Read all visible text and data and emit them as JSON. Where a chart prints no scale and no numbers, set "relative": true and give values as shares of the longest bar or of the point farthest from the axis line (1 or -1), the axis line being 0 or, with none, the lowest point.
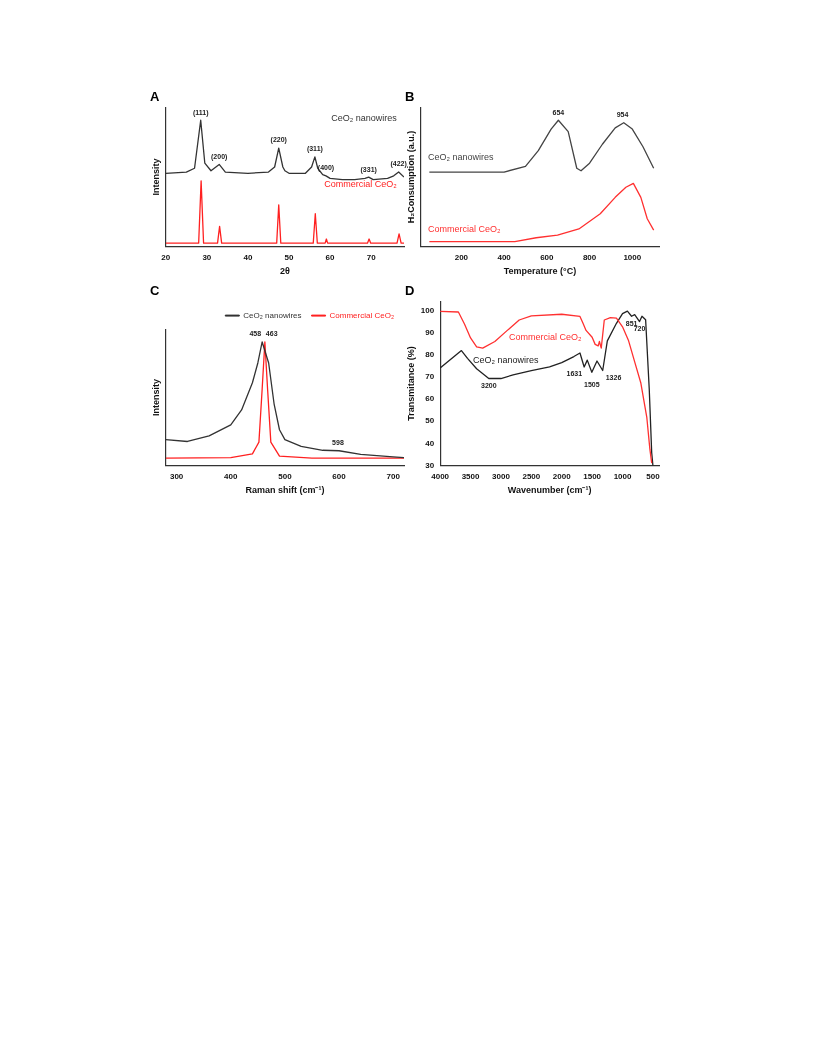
{
  "chart_data": [
    {
      "type": "line",
      "title": "A",
      "xlabel": "2θ",
      "ylabel": "Intensity",
      "relative": true,
      "xlim": [
        20,
        78
      ],
      "xticks": [
        20,
        30,
        40,
        50,
        60,
        70
      ],
      "legend": false,
      "marker": "none",
      "line_style": "solid",
      "series": [
        {
          "name": "CeO₂ nanowires",
          "color": "#333333",
          "x": [
            20,
            25,
            27,
            28.5,
            29.5,
            31,
            33,
            34.5,
            40,
            45,
            46.5,
            47.5,
            48.5,
            49,
            50,
            54,
            55.5,
            56.3,
            57,
            58.2,
            59,
            60,
            63,
            66,
            68.5,
            69.4,
            70.5,
            74,
            75.5,
            76.7,
            78
          ],
          "values": [
            0.58,
            0.59,
            0.62,
            1.0,
            0.66,
            0.6,
            0.65,
            0.59,
            0.58,
            0.59,
            0.63,
            0.78,
            0.63,
            0.6,
            0.58,
            0.58,
            0.63,
            0.71,
            0.62,
            0.57,
            0.56,
            0.54,
            0.53,
            0.53,
            0.54,
            0.55,
            0.53,
            0.54,
            0.56,
            0.59,
            0.55
          ]
        },
        {
          "name": "Commercial CeO₂",
          "color": "#ff2020",
          "x": [
            20,
            28,
            28.6,
            29.2,
            32.6,
            33.1,
            33.6,
            47,
            47.5,
            48,
            55.9,
            56.4,
            56.9,
            58.8,
            59.1,
            59.4,
            69.1,
            69.5,
            69.9,
            76.3,
            76.8,
            77.3,
            78
          ],
          "values": [
            0.027,
            0.027,
            0.52,
            0.027,
            0.027,
            0.16,
            0.027,
            0.027,
            0.33,
            0.027,
            0.027,
            0.26,
            0.027,
            0.027,
            0.06,
            0.027,
            0.027,
            0.06,
            0.027,
            0.027,
            0.1,
            0.027,
            0.027
          ]
        }
      ],
      "annotations": [
        {
          "text": "(111)",
          "x": 28.5,
          "y": 1.0
        },
        {
          "text": "(200)",
          "x": 33,
          "y": 0.65
        },
        {
          "text": "(220)",
          "x": 47.5,
          "y": 0.78
        },
        {
          "text": "(311)",
          "x": 56.3,
          "y": 0.71
        },
        {
          "text": "(400)",
          "x": 59,
          "y": 0.56
        },
        {
          "text": "(331)",
          "x": 69.4,
          "y": 0.55
        },
        {
          "text": "(422)",
          "x": 76.7,
          "y": 0.59
        }
      ]
    },
    {
      "type": "line",
      "title": "B",
      "xlabel": "Temperature (°C)",
      "ylabel": "H₂Consumption (a.u.)",
      "relative": true,
      "xlim": [
        10,
        1125
      ],
      "xticks": [
        200,
        400,
        600,
        800,
        1000
      ],
      "legend": false,
      "marker": "none",
      "line_style": "solid",
      "series": [
        {
          "name": "CeO₂ nanowires",
          "color": "#444444",
          "x": [
            50,
            400,
            500,
            560,
            620,
            654,
            700,
            740,
            760,
            800,
            860,
            920,
            960,
            1000,
            1050,
            1100
          ],
          "values": [
            0.59,
            0.59,
            0.635,
            0.76,
            0.93,
            1.0,
            0.91,
            0.62,
            0.6,
            0.66,
            0.81,
            0.94,
            0.98,
            0.93,
            0.79,
            0.62
          ]
        },
        {
          "name": "Commercial CeO₂",
          "color": "#ff3030",
          "x": [
            50,
            450,
            550,
            650,
            750,
            850,
            920,
            970,
            1005,
            1040,
            1070,
            1100
          ],
          "values": [
            0.04,
            0.04,
            0.07,
            0.09,
            0.14,
            0.26,
            0.39,
            0.47,
            0.5,
            0.39,
            0.22,
            0.13
          ]
        }
      ],
      "annotations": [
        {
          "text": "654",
          "x": 654,
          "y": 1.0
        },
        {
          "text": "954",
          "x": 954,
          "y": 0.98
        }
      ]
    },
    {
      "type": "line",
      "title": "C",
      "xlabel": "Raman shift (cm⁻¹)",
      "ylabel": "Intensity",
      "relative": true,
      "xlim": [
        280,
        720
      ],
      "xticks": [
        300,
        400,
        500,
        600,
        700
      ],
      "legend": "top right",
      "marker": "none",
      "line_style": "solid",
      "series": [
        {
          "name": "CeO₂ nanowires",
          "color": "#333333",
          "x": [
            280,
            320,
            360,
            400,
            420,
            440,
            450,
            458,
            470,
            480,
            490,
            500,
            530,
            570,
            600,
            640,
            700,
            720
          ],
          "values": [
            0.21,
            0.195,
            0.24,
            0.33,
            0.45,
            0.67,
            0.83,
            1.0,
            0.83,
            0.5,
            0.29,
            0.21,
            0.155,
            0.124,
            0.12,
            0.09,
            0.07,
            0.064
          ]
        },
        {
          "name": "Commercial CeO₂",
          "color": "#ff2020",
          "x": [
            280,
            400,
            440,
            452,
            458,
            463,
            468,
            474,
            490,
            550,
            720
          ],
          "values": [
            0.06,
            0.064,
            0.095,
            0.19,
            0.62,
            1.0,
            0.62,
            0.19,
            0.076,
            0.06,
            0.06
          ]
        }
      ],
      "annotations": [
        {
          "text": "458",
          "x": 458,
          "y": 1.0
        },
        {
          "text": "463",
          "x": 463,
          "y": 1.0
        },
        {
          "text": "598",
          "x": 598,
          "y": 0.12
        }
      ]
    },
    {
      "type": "line",
      "title": "D",
      "xlabel": "Wavenumber (cm⁻¹)",
      "ylabel": "Transmitance (%)",
      "xlim": [
        4000,
        400
      ],
      "xticks": [
        4000,
        3500,
        3000,
        2500,
        2000,
        1500,
        1000,
        500
      ],
      "ylim": [
        30,
        104
      ],
      "yticks": [
        30,
        40,
        50,
        60,
        70,
        80,
        90,
        100
      ],
      "legend": false,
      "marker": "none",
      "line_style": "solid",
      "series": [
        {
          "name": "Commercial CeO₂",
          "color": "#ff3030",
          "x": [
            4000,
            3700,
            3600,
            3500,
            3400,
            3300,
            3100,
            2900,
            2700,
            2500,
            2000,
            1700,
            1650,
            1600,
            1500,
            1450,
            1400,
            1380,
            1350,
            1300,
            1200,
            1100,
            1000,
            900,
            800,
            700,
            600,
            550,
            520
          ],
          "values": [
            99.6,
            99.3,
            93.9,
            87.6,
            83.6,
            83,
            86,
            90.9,
            95.7,
            97.6,
            98.3,
            97.3,
            94.2,
            91,
            87.9,
            84.7,
            84,
            86,
            83,
            95.7,
            96.8,
            96.5,
            92.6,
            86.3,
            76.8,
            67.4,
            51.6,
            37.4,
            31.1
          ]
        },
        {
          "name": "CeO₂ nanowires",
          "color": "#222222",
          "x": [
            4000,
            3700,
            3650,
            3550,
            3400,
            3200,
            3000,
            2800,
            2500,
            2200,
            2000,
            1800,
            1700,
            1631,
            1580,
            1505,
            1420,
            1326,
            1250,
            1100,
            1000,
            920,
            851,
            800,
            720,
            680,
            620,
            560,
            520,
            500
          ],
          "values": [
            74,
            80.8,
            81.9,
            78.4,
            73.7,
            69.3,
            69.3,
            70.9,
            72.9,
            74.5,
            76.5,
            79.2,
            80.8,
            74.5,
            77.6,
            72.1,
            77.2,
            72.9,
            86.3,
            94.2,
            98.6,
            99.7,
            97.4,
            98.1,
            95,
            97.4,
            95.8,
            64.2,
            35.8,
            30
          ]
        }
      ],
      "annotations": [
        {
          "text": "3200",
          "x": 3200,
          "y": 69.3
        },
        {
          "text": "1631",
          "x": 1631,
          "y": 74.5
        },
        {
          "text": "1505",
          "x": 1505,
          "y": 72.1
        },
        {
          "text": "1326",
          "x": 1326,
          "y": 72.9
        },
        {
          "text": "851",
          "x": 851,
          "y": 97.4
        },
        {
          "text": "720",
          "x": 720,
          "y": 95
        }
      ]
    }
  ]
}
